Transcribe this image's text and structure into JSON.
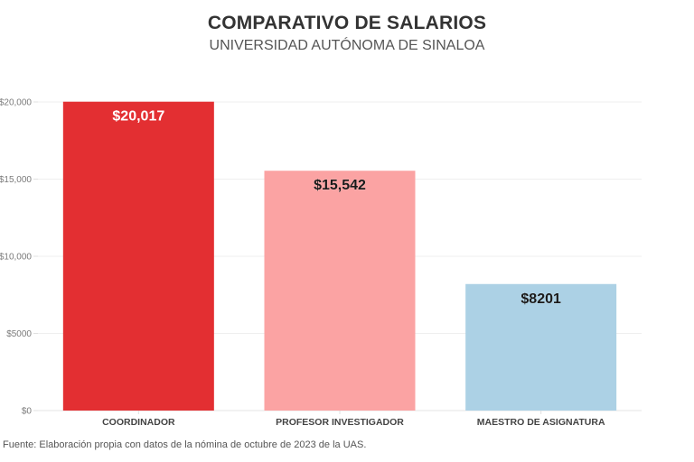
{
  "chart_data": {
    "type": "bar",
    "title": "COMPARATIVO DE SALARIOS",
    "subtitle": "UNIVERSIDAD AUTÓNOMA DE SINALOA",
    "xlabel": "",
    "ylabel": "",
    "ylim": [
      0,
      20000
    ],
    "yticks": [
      0,
      5000,
      10000,
      15000,
      20000
    ],
    "ytick_labels": [
      "$0",
      "$5000",
      "$10,000",
      "$15,000",
      "$20,000"
    ],
    "categories": [
      "COORDINADOR",
      "PROFESOR INVESTIGADOR",
      "MAESTRO DE ASIGNATURA"
    ],
    "values": [
      20017,
      15542,
      8201
    ],
    "data_labels": [
      "$20,017",
      "$15,542",
      "$8201"
    ],
    "colors": [
      "#e32f32",
      "#fba3a3",
      "#acd1e5"
    ],
    "label_colors": [
      "#ffffff",
      "#1a1a1a",
      "#1a1a1a"
    ],
    "grid": true,
    "legend": "none",
    "source": "Fuente: Elaboración propia con datos de la nómina de octubre de 2023 de la UAS."
  }
}
